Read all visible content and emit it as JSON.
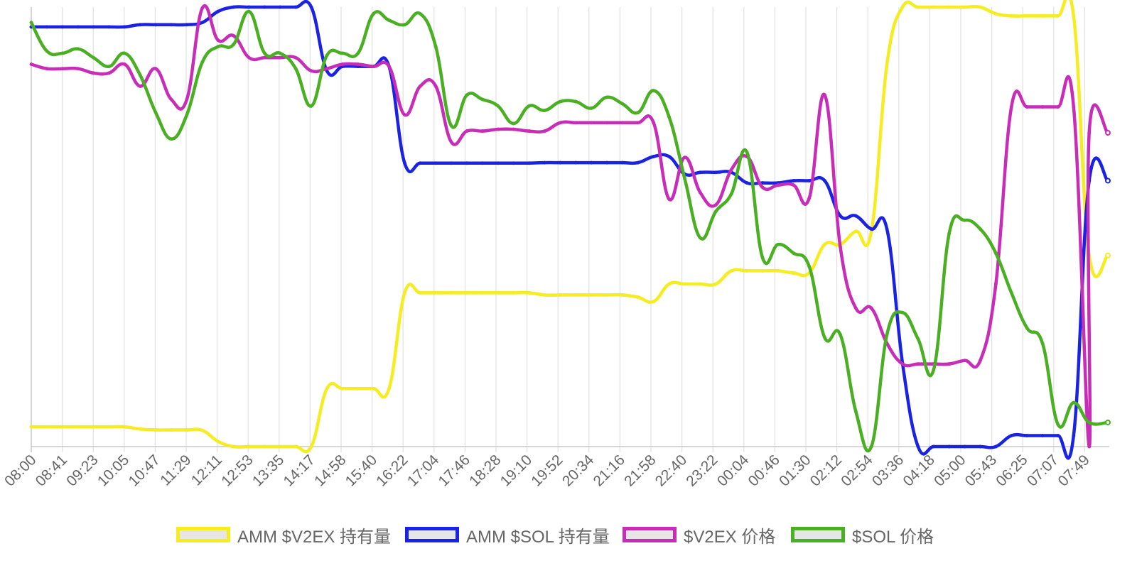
{
  "chart_data": {
    "type": "line",
    "title": "",
    "xlabel": "",
    "ylabel": "",
    "grid": true,
    "legend_position": "bottom",
    "tick_labels": [
      "08:00",
      "08:41",
      "09:23",
      "10:05",
      "10:47",
      "11:29",
      "12:11",
      "12:53",
      "13:35",
      "14:17",
      "14:58",
      "15:40",
      "16:22",
      "17:04",
      "17:46",
      "18:28",
      "19:10",
      "19:52",
      "20:34",
      "21:16",
      "21:58",
      "22:40",
      "23:22",
      "00:04",
      "00:46",
      "01:30",
      "02:12",
      "02:54",
      "03:36",
      "04:18",
      "05:00",
      "05:43",
      "06:25",
      "07:07",
      "07:49"
    ],
    "x_range": [
      0,
      34.6
    ],
    "y_range": [
      0,
      1
    ],
    "series": [
      {
        "name": "AMM $V2EX 持有量",
        "color": "#f5ec22",
        "points": [
          [
            0,
            0.045
          ],
          [
            0.5,
            0.045
          ],
          [
            1,
            0.045
          ],
          [
            1.5,
            0.045
          ],
          [
            2,
            0.045
          ],
          [
            2.5,
            0.045
          ],
          [
            3,
            0.045
          ],
          [
            3.5,
            0.04
          ],
          [
            4,
            0.038
          ],
          [
            4.5,
            0.038
          ],
          [
            5,
            0.038
          ],
          [
            5.5,
            0.037
          ],
          [
            6,
            0.012
          ],
          [
            6.5,
            0.0
          ],
          [
            7,
            0.0
          ],
          [
            7.5,
            0.0
          ],
          [
            8,
            0.0
          ],
          [
            8.5,
            0.0
          ],
          [
            9,
            0.0
          ],
          [
            9.5,
            0.132
          ],
          [
            10,
            0.132
          ],
          [
            10.5,
            0.132
          ],
          [
            11,
            0.132
          ],
          [
            11.5,
            0.132
          ],
          [
            12,
            0.35
          ],
          [
            12.5,
            0.35
          ],
          [
            13,
            0.35
          ],
          [
            13.5,
            0.35
          ],
          [
            14,
            0.35
          ],
          [
            14.5,
            0.35
          ],
          [
            15,
            0.35
          ],
          [
            15.5,
            0.35
          ],
          [
            16,
            0.35
          ],
          [
            16.5,
            0.345
          ],
          [
            17,
            0.345
          ],
          [
            17.5,
            0.345
          ],
          [
            18,
            0.345
          ],
          [
            18.5,
            0.345
          ],
          [
            19,
            0.345
          ],
          [
            19.5,
            0.34
          ],
          [
            20,
            0.33
          ],
          [
            20.5,
            0.37
          ],
          [
            21,
            0.37
          ],
          [
            21.5,
            0.37
          ],
          [
            22,
            0.37
          ],
          [
            22.5,
            0.4
          ],
          [
            23,
            0.4
          ],
          [
            23.5,
            0.4
          ],
          [
            24,
            0.4
          ],
          [
            24.5,
            0.395
          ],
          [
            25,
            0.395
          ],
          [
            25.5,
            0.46
          ],
          [
            26,
            0.46
          ],
          [
            26.5,
            0.49
          ],
          [
            27,
            0.49
          ],
          [
            27.5,
            0.87
          ],
          [
            28,
            1.0
          ],
          [
            28.5,
            1.0
          ],
          [
            29,
            1.0
          ],
          [
            29.5,
            1.0
          ],
          [
            30,
            1.0
          ],
          [
            30.5,
            1.0
          ],
          [
            31,
            0.985
          ],
          [
            31.5,
            0.98
          ],
          [
            32,
            0.98
          ],
          [
            32.5,
            0.98
          ],
          [
            33,
            0.98
          ],
          [
            33.5,
            0.98
          ],
          [
            34,
            0.435
          ],
          [
            34.6,
            0.435
          ]
        ]
      },
      {
        "name": "AMM $SOL 持有量",
        "color": "#1a23e3",
        "points": [
          [
            0,
            0.955
          ],
          [
            0.5,
            0.955
          ],
          [
            1,
            0.955
          ],
          [
            1.5,
            0.955
          ],
          [
            2,
            0.955
          ],
          [
            2.5,
            0.955
          ],
          [
            3,
            0.955
          ],
          [
            3.5,
            0.96
          ],
          [
            4,
            0.96
          ],
          [
            4.5,
            0.96
          ],
          [
            5,
            0.96
          ],
          [
            5.5,
            0.965
          ],
          [
            6,
            0.99
          ],
          [
            6.5,
            1.0
          ],
          [
            7,
            1.0
          ],
          [
            7.5,
            1.0
          ],
          [
            8,
            1.0
          ],
          [
            8.5,
            1.0
          ],
          [
            9,
            1.0
          ],
          [
            9.5,
            0.855
          ],
          [
            10,
            0.865
          ],
          [
            10.5,
            0.865
          ],
          [
            11,
            0.865
          ],
          [
            11.5,
            0.865
          ],
          [
            12,
            0.645
          ],
          [
            12.5,
            0.645
          ],
          [
            13,
            0.645
          ],
          [
            13.5,
            0.645
          ],
          [
            14,
            0.645
          ],
          [
            14.5,
            0.645
          ],
          [
            15,
            0.645
          ],
          [
            15.5,
            0.645
          ],
          [
            16,
            0.645
          ],
          [
            16.5,
            0.646
          ],
          [
            17,
            0.646
          ],
          [
            17.5,
            0.646
          ],
          [
            18,
            0.646
          ],
          [
            18.5,
            0.646
          ],
          [
            19,
            0.646
          ],
          [
            19.5,
            0.646
          ],
          [
            20,
            0.66
          ],
          [
            20.5,
            0.66
          ],
          [
            21,
            0.62
          ],
          [
            21.5,
            0.624
          ],
          [
            22,
            0.624
          ],
          [
            22.5,
            0.624
          ],
          [
            23,
            0.6
          ],
          [
            23.5,
            0.6
          ],
          [
            24,
            0.6
          ],
          [
            24.5,
            0.605
          ],
          [
            25,
            0.605
          ],
          [
            25.5,
            0.605
          ],
          [
            26,
            0.525
          ],
          [
            26.5,
            0.525
          ],
          [
            27,
            0.495
          ],
          [
            27.5,
            0.495
          ],
          [
            28,
            0.19
          ],
          [
            28.5,
            0.0
          ],
          [
            29,
            0.0
          ],
          [
            29.5,
            0.0
          ],
          [
            30,
            0.0
          ],
          [
            30.5,
            0.0
          ],
          [
            31,
            0.0
          ],
          [
            31.5,
            0.025
          ],
          [
            32,
            0.025
          ],
          [
            32.5,
            0.025
          ],
          [
            33,
            0.025
          ],
          [
            33.5,
            0.025
          ],
          [
            34,
            0.605
          ],
          [
            34.6,
            0.605
          ]
        ]
      },
      {
        "name": "$V2EX 价格",
        "color": "#c82db8",
        "points": [
          [
            0,
            0.87
          ],
          [
            0.5,
            0.86
          ],
          [
            1,
            0.86
          ],
          [
            1.5,
            0.86
          ],
          [
            2,
            0.85
          ],
          [
            2.5,
            0.85
          ],
          [
            3,
            0.87
          ],
          [
            3.5,
            0.82
          ],
          [
            4,
            0.86
          ],
          [
            4.5,
            0.79
          ],
          [
            5,
            0.79
          ],
          [
            5.5,
            0.998
          ],
          [
            6,
            0.925
          ],
          [
            6.5,
            0.935
          ],
          [
            7,
            0.885
          ],
          [
            7.5,
            0.885
          ],
          [
            8,
            0.885
          ],
          [
            8.5,
            0.885
          ],
          [
            9,
            0.855
          ],
          [
            9.5,
            0.86
          ],
          [
            10,
            0.87
          ],
          [
            10.5,
            0.87
          ],
          [
            11,
            0.865
          ],
          [
            11.5,
            0.865
          ],
          [
            12,
            0.755
          ],
          [
            12.5,
            0.82
          ],
          [
            13,
            0.82
          ],
          [
            13.5,
            0.693
          ],
          [
            14,
            0.718
          ],
          [
            14.5,
            0.718
          ],
          [
            15,
            0.722
          ],
          [
            15.5,
            0.722
          ],
          [
            16,
            0.718
          ],
          [
            16.5,
            0.718
          ],
          [
            17,
            0.737
          ],
          [
            17.5,
            0.737
          ],
          [
            18,
            0.737
          ],
          [
            18.5,
            0.737
          ],
          [
            19,
            0.737
          ],
          [
            19.5,
            0.737
          ],
          [
            20,
            0.737
          ],
          [
            20.5,
            0.563
          ],
          [
            21,
            0.658
          ],
          [
            21.5,
            0.578
          ],
          [
            22,
            0.55
          ],
          [
            22.5,
            0.63
          ],
          [
            23,
            0.66
          ],
          [
            23.5,
            0.59
          ],
          [
            24,
            0.595
          ],
          [
            24.5,
            0.595
          ],
          [
            25,
            0.565
          ],
          [
            25.5,
            0.8
          ],
          [
            26,
            0.455
          ],
          [
            26.5,
            0.315
          ],
          [
            27,
            0.315
          ],
          [
            27.5,
            0.235
          ],
          [
            28,
            0.188
          ],
          [
            28.5,
            0.188
          ],
          [
            29,
            0.188
          ],
          [
            29.5,
            0.188
          ],
          [
            30,
            0.196
          ],
          [
            30.5,
            0.196
          ],
          [
            31,
            0.37
          ],
          [
            31.5,
            0.773
          ],
          [
            32,
            0.773
          ],
          [
            32.5,
            0.773
          ],
          [
            33,
            0.773
          ],
          [
            33.5,
            0.773
          ],
          [
            34,
            0.0
          ],
          [
            34,
            0.714
          ],
          [
            34.6,
            0.714
          ]
        ]
      },
      {
        "name": "$SOL 价格",
        "color": "#4aaf22",
        "points": [
          [
            0,
            0.965
          ],
          [
            0.5,
            0.9
          ],
          [
            1,
            0.895
          ],
          [
            1.5,
            0.905
          ],
          [
            2,
            0.885
          ],
          [
            2.5,
            0.865
          ],
          [
            3,
            0.895
          ],
          [
            3.5,
            0.845
          ],
          [
            4,
            0.76
          ],
          [
            4.5,
            0.7
          ],
          [
            5,
            0.755
          ],
          [
            5.5,
            0.875
          ],
          [
            6,
            0.91
          ],
          [
            6.5,
            0.915
          ],
          [
            7,
            0.99
          ],
          [
            7.5,
            0.895
          ],
          [
            8,
            0.895
          ],
          [
            8.5,
            0.86
          ],
          [
            9,
            0.775
          ],
          [
            9.5,
            0.89
          ],
          [
            10,
            0.895
          ],
          [
            10.5,
            0.895
          ],
          [
            11,
            0.985
          ],
          [
            11.5,
            0.97
          ],
          [
            12,
            0.96
          ],
          [
            12.5,
            0.985
          ],
          [
            13,
            0.91
          ],
          [
            13.5,
            0.73
          ],
          [
            14,
            0.8
          ],
          [
            14.5,
            0.79
          ],
          [
            15,
            0.775
          ],
          [
            15.5,
            0.735
          ],
          [
            16,
            0.775
          ],
          [
            16.5,
            0.765
          ],
          [
            17,
            0.785
          ],
          [
            17.5,
            0.785
          ],
          [
            18,
            0.77
          ],
          [
            18.5,
            0.795
          ],
          [
            19,
            0.78
          ],
          [
            19.5,
            0.76
          ],
          [
            20,
            0.81
          ],
          [
            20.5,
            0.75
          ],
          [
            21,
            0.61
          ],
          [
            21.5,
            0.475
          ],
          [
            22,
            0.535
          ],
          [
            22.5,
            0.575
          ],
          [
            23,
            0.67
          ],
          [
            23.5,
            0.43
          ],
          [
            24,
            0.46
          ],
          [
            24.5,
            0.44
          ],
          [
            25,
            0.41
          ],
          [
            25.5,
            0.248
          ],
          [
            26,
            0.255
          ],
          [
            26.5,
            0.08
          ],
          [
            27,
            0.0
          ],
          [
            27.5,
            0.255
          ],
          [
            28,
            0.305
          ],
          [
            28.5,
            0.245
          ],
          [
            29,
            0.175
          ],
          [
            29.5,
            0.485
          ],
          [
            30,
            0.515
          ],
          [
            30.5,
            0.495
          ],
          [
            31,
            0.44
          ],
          [
            31.5,
            0.35
          ],
          [
            32,
            0.27
          ],
          [
            32.5,
            0.235
          ],
          [
            33,
            0.05
          ],
          [
            33.5,
            0.1
          ],
          [
            34,
            0.055
          ],
          [
            34.6,
            0.055
          ]
        ]
      }
    ]
  }
}
